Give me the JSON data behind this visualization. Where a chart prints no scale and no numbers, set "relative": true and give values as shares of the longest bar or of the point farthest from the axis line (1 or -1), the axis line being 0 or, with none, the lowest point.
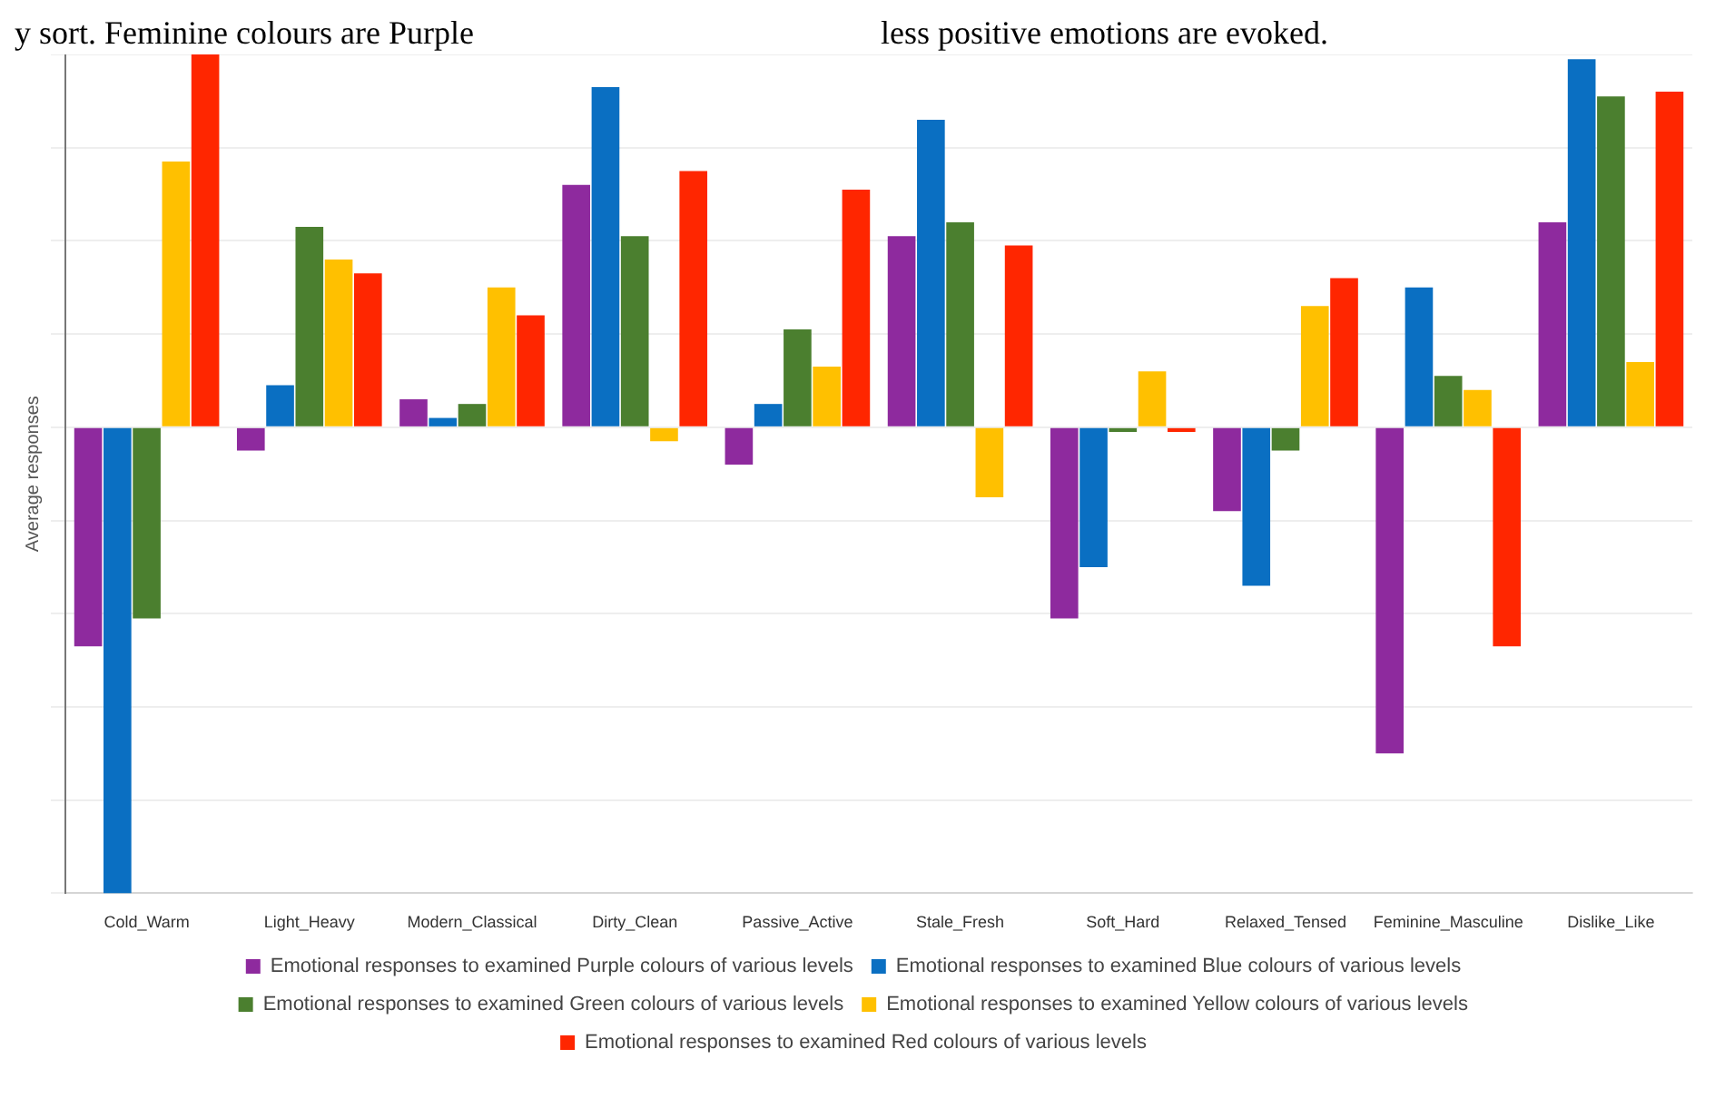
{
  "chart_data": {
    "type": "bar",
    "ylabel": "Average responses",
    "relative": true,
    "grid": "y",
    "legend": "bottom",
    "annotations": [
      "y sort. Feminine colours are Purple",
      "less positive emotions are evoked."
    ],
    "categories": [
      "Cold_Warm",
      "Light_Heavy",
      "Modern_Classical",
      "Dirty_Clean",
      "Passive_Active",
      "Stale_Fresh",
      "Soft_Hard",
      "Relaxed_Tensed",
      "Feminine_Masculine",
      "Dislike_Like"
    ],
    "series": [
      {
        "name": "Emotional responses to examined Purple colours of various levels",
        "color": "#8e2a9e",
        "values": [
          -0.47,
          -0.05,
          0.06,
          0.52,
          -0.08,
          0.41,
          -0.41,
          -0.18,
          -0.7,
          0.44
        ]
      },
      {
        "name": "Emotional responses to examined Blue colours of various levels",
        "color": "#0a6fc2",
        "values": [
          -1,
          0.09,
          0.02,
          0.73,
          0.05,
          0.66,
          -0.3,
          -0.34,
          0.3,
          0.79
        ]
      },
      {
        "name": "Emotional responses to examined Green colours of various levels",
        "color": "#4b7f2f",
        "values": [
          -0.41,
          0.43,
          0.05,
          0.41,
          0.21,
          0.44,
          -0.01,
          -0.05,
          0.11,
          0.71
        ]
      },
      {
        "name": "Emotional responses to examined Yellow colours of various levels",
        "color": "#ffc000",
        "values": [
          0.57,
          0.36,
          0.3,
          -0.03,
          0.13,
          -0.15,
          0.12,
          0.26,
          0.08,
          0.14
        ]
      },
      {
        "name": "Emotional responses to examined Red colours of various levels",
        "color": "#ff2600",
        "values": [
          0.8,
          0.33,
          0.24,
          0.55,
          0.51,
          0.39,
          -0.01,
          0.32,
          -0.47,
          0.72
        ]
      }
    ]
  }
}
